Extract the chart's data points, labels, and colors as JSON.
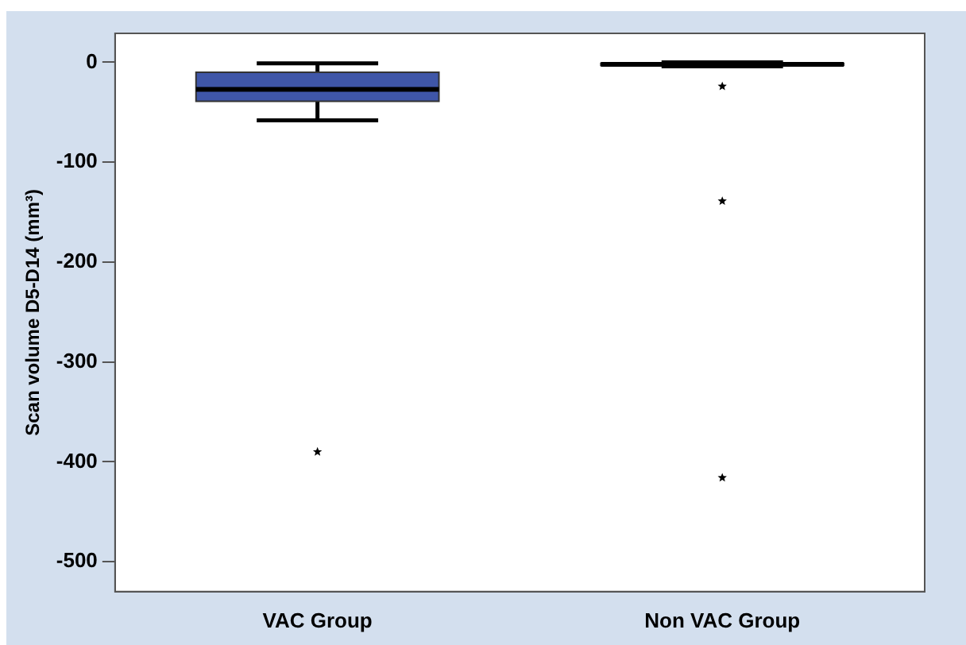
{
  "chart_data": {
    "type": "box",
    "ylabel": "Scan volume D5-D14 (mm³)",
    "categories": [
      "VAC Group",
      "Non VAC Group"
    ],
    "ylim": [
      -530,
      29
    ],
    "yticks": [
      0,
      -100,
      -200,
      -300,
      -400,
      -500
    ],
    "grid": false,
    "legend": false,
    "series": [
      {
        "color": "#3f56a8",
        "boxes": [
          {
            "low": -58,
            "q1": -39,
            "median": -27,
            "q3": -10,
            "high": -1,
            "outliers": [
              -390
            ]
          },
          {
            "low": -4,
            "q1": -3,
            "median": -2,
            "q3": -1,
            "high": 0,
            "outliers": [
              -24,
              -139,
              -416
            ]
          }
        ]
      }
    ]
  }
}
